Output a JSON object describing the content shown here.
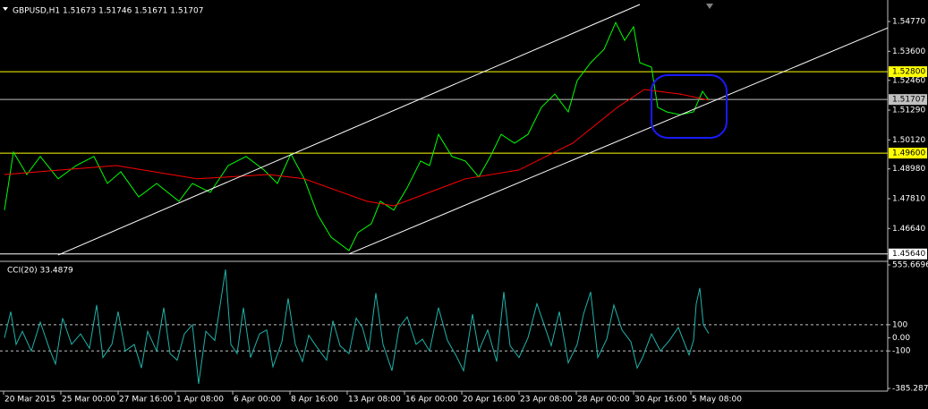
{
  "chart_data": [
    {
      "type": "line",
      "title": "GBPUSD,H1  1.51673 1.51746 1.51671 1.51707",
      "xlim": [
        0,
        992
      ],
      "ylim": [
        1.4542,
        1.5551
      ],
      "yticks": [
        {
          "value": 1.5477,
          "label": "1.54770"
        },
        {
          "value": 1.536,
          "label": "1.53600"
        },
        {
          "value": 1.5246,
          "label": "1.52460"
        },
        {
          "value": 1.5129,
          "label": "1.51290"
        },
        {
          "value": 1.5012,
          "label": "1.50120"
        },
        {
          "value": 1.4898,
          "label": "1.48980"
        },
        {
          "value": 1.4781,
          "label": "1.47810"
        },
        {
          "value": 1.4664,
          "label": "1.46640"
        }
      ],
      "hlines": [
        {
          "value": 1.528,
          "label": "1.52800",
          "color": "#ffff00"
        },
        {
          "value": 1.51707,
          "label": "1.51707",
          "color": "#c0c0c0"
        },
        {
          "value": 1.496,
          "label": "1.49600",
          "color": "#ffff00"
        },
        {
          "value": 1.4564,
          "label": "1.45640",
          "color": "#ffffff"
        }
      ],
      "series": [
        {
          "color": "#00ff00",
          "x": [
            5,
            15,
            30,
            45,
            65,
            85,
            105,
            120,
            135,
            155,
            175,
            200,
            215,
            235,
            255,
            275,
            295,
            310,
            325,
            340,
            355,
            370,
            390,
            400,
            415,
            425,
            440,
            455,
            470,
            480,
            490,
            505,
            520,
            535,
            548,
            560,
            575,
            590,
            605,
            620,
            635,
            645,
            660,
            675,
            688,
            698,
            708,
            715,
            728,
            735,
            745,
            760,
            775,
            785,
            792
          ],
          "values": [
            1.4736,
            1.4964,
            1.4876,
            1.4947,
            1.4859,
            1.4911,
            1.4947,
            1.4841,
            1.4887,
            1.4788,
            1.4841,
            1.4771,
            1.4841,
            1.4806,
            1.4911,
            1.4947,
            1.4894,
            1.4841,
            1.4957,
            1.4859,
            1.4718,
            1.463,
            1.4577,
            1.4648,
            1.4683,
            1.4771,
            1.4736,
            1.4824,
            1.4929,
            1.4911,
            1.5034,
            1.4947,
            1.4929,
            1.4866,
            1.4947,
            1.5034,
            1.4999,
            1.5034,
            1.514,
            1.5192,
            1.5122,
            1.5245,
            1.5315,
            1.5368,
            1.5473,
            1.5403,
            1.5456,
            1.5315,
            1.5298,
            1.514,
            1.5122,
            1.5111,
            1.5122,
            1.5203,
            1.5168
          ]
        },
        {
          "color": "#ff0000",
          "x": [
            5,
            130,
            220,
            300,
            340,
            410,
            440,
            480,
            520,
            580,
            640,
            690,
            720,
            760,
            792
          ],
          "values": [
            1.4876,
            1.4911,
            1.4859,
            1.4876,
            1.4859,
            1.4771,
            1.4753,
            1.4806,
            1.4859,
            1.4894,
            1.4999,
            1.514,
            1.521,
            1.5192,
            1.5168
          ]
        },
        {
          "color": "#ffffff",
          "x": [
            65,
            715
          ],
          "values": [
            1.456,
            1.5544
          ]
        },
        {
          "color": "#ffffff",
          "x": [
            390,
            992
          ],
          "values": [
            1.4564,
            1.5452
          ]
        }
      ]
    },
    {
      "type": "line",
      "title": "CCI(20) 33.4879",
      "xlim": [
        0,
        992
      ],
      "ylim": [
        -385.2873,
        555.6696
      ],
      "yticks": [
        555.6696,
        100,
        {
          "value": 0,
          "label": "0.00"
        },
        -100,
        -385.2873
      ],
      "levels": [
        100,
        -100
      ],
      "xticks": [
        {
          "value": 4,
          "label": "20 Mar 2015"
        },
        {
          "value": 68,
          "label": "25 Mar 00:00"
        },
        {
          "value": 132,
          "label": "27 Mar 16:00"
        },
        {
          "value": 196,
          "label": "1 Apr 08:00"
        },
        {
          "value": 260,
          "label": "6 Apr 00:00"
        },
        {
          "value": 324,
          "label": "8 Apr 16:00"
        },
        {
          "value": 388,
          "label": "13 Apr 08:00"
        },
        {
          "value": 452,
          "label": "16 Apr 00:00"
        },
        {
          "value": 516,
          "label": "20 Apr 16:00"
        },
        {
          "value": 580,
          "label": "23 Apr 08:00"
        },
        {
          "value": 644,
          "label": "28 Apr 00:00"
        },
        {
          "value": 708,
          "label": "30 Apr 16:00"
        },
        {
          "value": 772,
          "label": "5 May 08:00"
        }
      ],
      "series": [
        {
          "color": "#20b2aa",
          "x": [
            5,
            12,
            18,
            25,
            35,
            45,
            55,
            62,
            70,
            80,
            90,
            100,
            108,
            115,
            125,
            132,
            140,
            150,
            158,
            165,
            175,
            183,
            190,
            198,
            206,
            215,
            222,
            230,
            240,
            252,
            258,
            265,
            272,
            280,
            290,
            298,
            305,
            315,
            322,
            330,
            338,
            345,
            355,
            365,
            372,
            380,
            390,
            398,
            405,
            412,
            420,
            428,
            438,
            446,
            455,
            465,
            472,
            480,
            490,
            500,
            510,
            518,
            528,
            535,
            545,
            555,
            563,
            570,
            580,
            590,
            600,
            608,
            616,
            625,
            635,
            645,
            652,
            660,
            668,
            678,
            686,
            695,
            705,
            712,
            718,
            728,
            738,
            748,
            758,
            770,
            775,
            778,
            782,
            786,
            792
          ],
          "values": [
            0,
            200,
            -50,
            50,
            -100,
            120,
            -80,
            -200,
            150,
            -50,
            30,
            -80,
            250,
            -150,
            -50,
            200,
            -100,
            -50,
            -230,
            50,
            -100,
            230,
            -120,
            -170,
            30,
            100,
            -350,
            50,
            -20,
            520,
            -50,
            -120,
            230,
            -150,
            30,
            60,
            -220,
            -30,
            300,
            -50,
            -180,
            20,
            -80,
            -170,
            130,
            -60,
            -120,
            150,
            80,
            -100,
            340,
            -50,
            -250,
            80,
            160,
            -50,
            -10,
            -100,
            230,
            -20,
            -140,
            -250,
            180,
            -100,
            60,
            -180,
            350,
            -60,
            -150,
            0,
            260,
            100,
            -60,
            200,
            -190,
            -50,
            180,
            350,
            -150,
            -10,
            250,
            60,
            -30,
            -230,
            -150,
            30,
            -100,
            -20,
            80,
            -130,
            -20,
            260,
            380,
            100,
            33.4879
          ]
        }
      ]
    }
  ]
}
